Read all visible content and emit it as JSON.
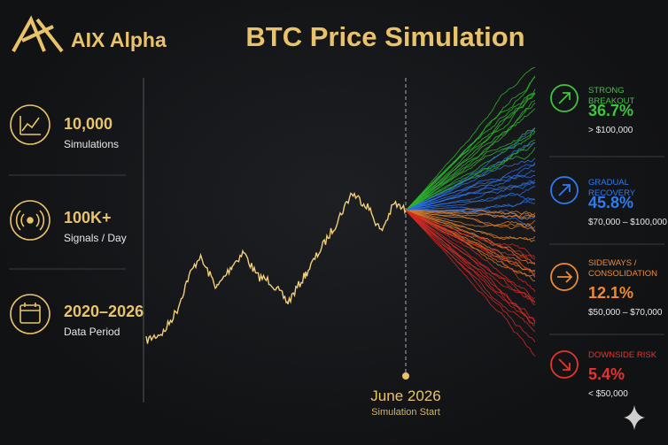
{
  "logo": {
    "text": "AIX Alpha"
  },
  "title": "BTC Price Simulation",
  "stats": [
    {
      "value": "10,000",
      "label": "Simulations"
    },
    {
      "value": "100K+",
      "label": "Signals / Day"
    },
    {
      "value": "2020–2026",
      "label": "Data Period"
    }
  ],
  "marker": {
    "date": "June 2026",
    "label": "Simulation Start"
  },
  "scenarios": [
    {
      "name": "STRONG BREAKOUT",
      "probability": "36.7%",
      "range": "> $100,000"
    },
    {
      "name": "GRADUAL RECOVERY",
      "probability": "45.8%",
      "range": "$70,000 – $100,000"
    },
    {
      "name": "SIDEWAYS / CONSOLIDATION",
      "probability": "12.1%",
      "range": "$50,000 – $70,000"
    },
    {
      "name": "DOWNSIDE RISK",
      "probability": "5.4%",
      "range": "< $50,000"
    }
  ]
}
